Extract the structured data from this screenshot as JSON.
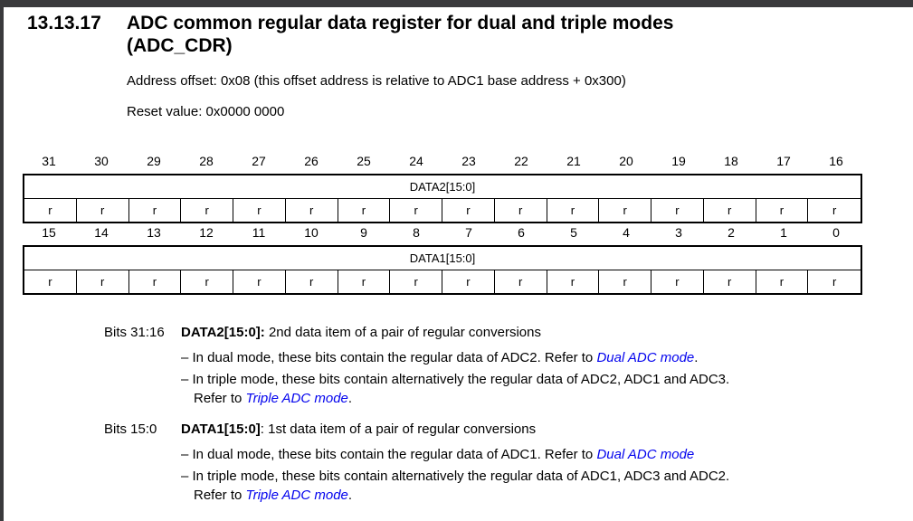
{
  "colors": {
    "frame_bar": "#3a3a3c",
    "link_blue": "#0404ee",
    "table_border": "#000000",
    "page_background": "#ffffff"
  },
  "header": {
    "section_number": "13.13.17",
    "title_line1": "ADC common regular data register for dual and triple modes",
    "title_line2": "(ADC_CDR)"
  },
  "meta": {
    "address_offset": "Address offset: 0x08 (this offset address is relative to ADC1 base address + 0x300)",
    "reset_value": "Reset value: 0x0000 0000"
  },
  "register_tables": [
    {
      "bit_numbers": [
        "31",
        "30",
        "29",
        "28",
        "27",
        "26",
        "25",
        "24",
        "23",
        "22",
        "21",
        "20",
        "19",
        "18",
        "17",
        "16"
      ],
      "field_name": "DATA2[15:0]",
      "access": [
        "r",
        "r",
        "r",
        "r",
        "r",
        "r",
        "r",
        "r",
        "r",
        "r",
        "r",
        "r",
        "r",
        "r",
        "r",
        "r"
      ]
    },
    {
      "bit_numbers": [
        "15",
        "14",
        "13",
        "12",
        "11",
        "10",
        "9",
        "8",
        "7",
        "6",
        "5",
        "4",
        "3",
        "2",
        "1",
        "0"
      ],
      "field_name": "DATA1[15:0]",
      "access": [
        "r",
        "r",
        "r",
        "r",
        "r",
        "r",
        "r",
        "r",
        "r",
        "r",
        "r",
        "r",
        "r",
        "r",
        "r",
        "r"
      ]
    }
  ],
  "descriptions": [
    {
      "bits_label": "Bits 31:16",
      "term": "DATA2[15:0]:",
      "summary": " 2nd data item of a pair of regular conversions",
      "item1_text": "– In dual mode, these bits contain the regular data of ADC2. Refer to ",
      "item1_link": "Dual ADC mode",
      "item1_after": ".",
      "item2_text": "– In triple mode, these bits contain alternatively the regular data of ADC2, ADC1 and ADC3.",
      "item2_cont_text": "Refer to ",
      "item2_cont_link": "Triple ADC mode",
      "item2_cont_after": "."
    },
    {
      "bits_label": "Bits 15:0",
      "term": "DATA1[15:0]",
      "summary": ": 1st data item of a pair of regular conversions",
      "item1_text": "– In dual mode, these bits contain the regular data of ADC1. Refer to ",
      "item1_link": "Dual ADC mode",
      "item1_after": "",
      "item2_text": "– In triple mode, these bits contain alternatively the regular data of ADC1, ADC3 and ADC2.",
      "item2_cont_text": "Refer to ",
      "item2_cont_link": "Triple ADC mode",
      "item2_cont_after": "."
    }
  ]
}
